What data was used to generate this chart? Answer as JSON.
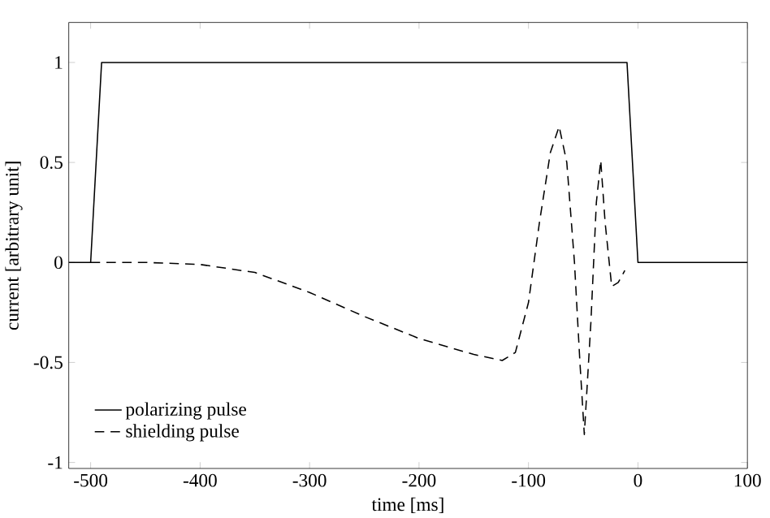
{
  "chart_data": {
    "type": "line",
    "xlabel": "time [ms]",
    "ylabel": "current [arbitrary unit]",
    "xlim": [
      -520,
      100
    ],
    "ylim": [
      -1.03,
      1.2
    ],
    "xticks": [
      -500,
      -400,
      -300,
      -200,
      -100,
      0,
      100
    ],
    "yticks": [
      -1,
      -0.5,
      0,
      0.5,
      1
    ],
    "legend": "bottom left",
    "grid": false,
    "series": [
      {
        "name": "polarizing pulse",
        "color": "#000000",
        "line_style": "solid",
        "x": [
          -520,
          -500,
          -490,
          -10,
          0,
          100
        ],
        "values": [
          0,
          0,
          1,
          1,
          0,
          0
        ]
      },
      {
        "name": "shielding pulse",
        "color": "#000000",
        "line_style": "dashed",
        "x": [
          -500,
          -450,
          -400,
          -350,
          -300,
          -250,
          -200,
          -150,
          -124,
          -112,
          -100,
          -90,
          -80,
          -72,
          -65,
          -58,
          -53,
          -49,
          -43,
          -38,
          -34,
          -30,
          -24,
          -18,
          -12
        ],
        "values": [
          0,
          0,
          -0.01,
          -0.05,
          -0.15,
          -0.27,
          -0.38,
          -0.46,
          -0.49,
          -0.45,
          -0.2,
          0.2,
          0.55,
          0.68,
          0.5,
          0,
          -0.5,
          -0.86,
          -0.3,
          0.3,
          0.51,
          0.2,
          -0.12,
          -0.1,
          -0.04
        ]
      }
    ]
  }
}
